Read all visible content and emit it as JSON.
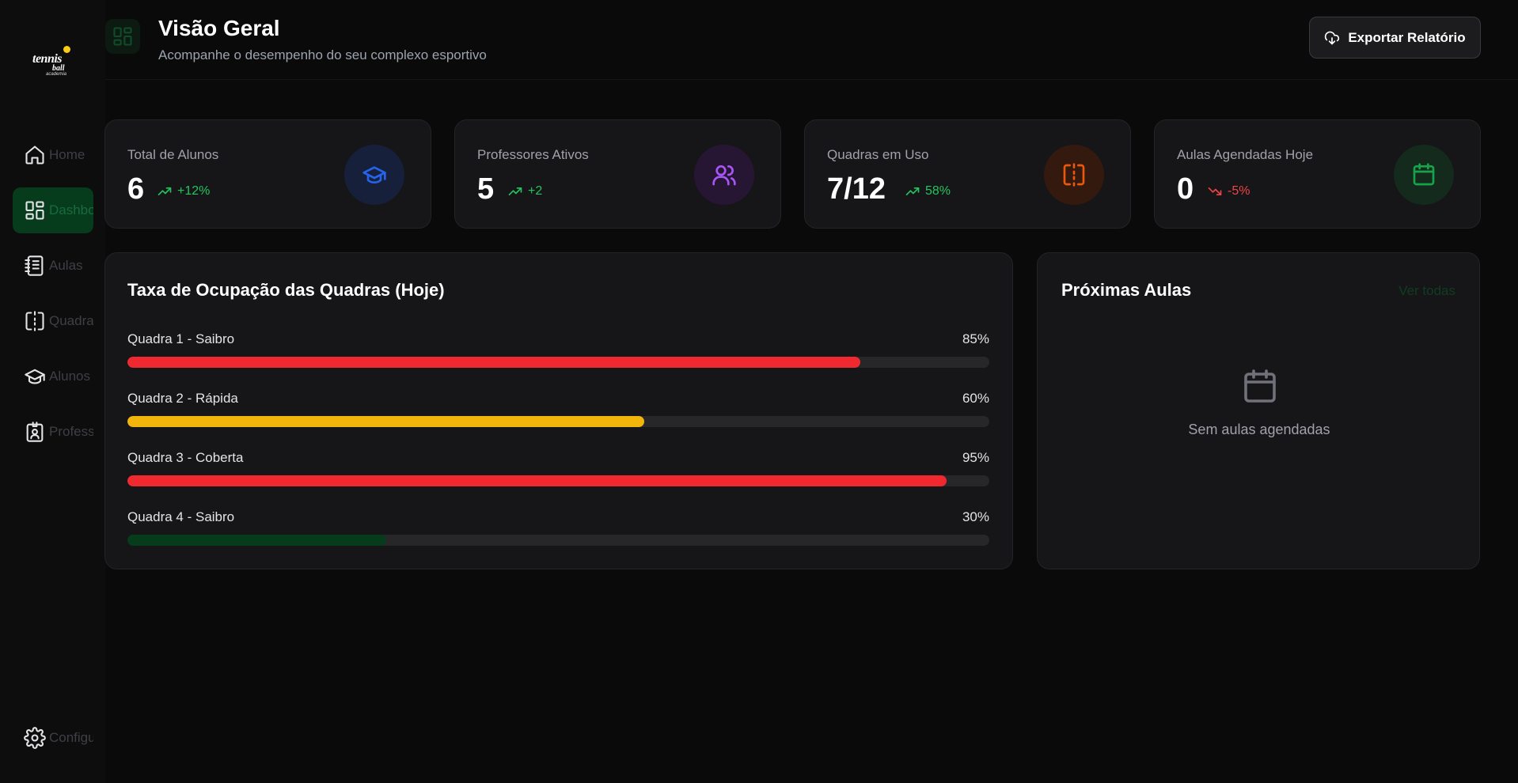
{
  "sidebar": {
    "logo": {
      "line1": "tennis",
      "line2": "ball",
      "line3": "academia"
    },
    "items": [
      {
        "label": "Home",
        "icon": "home-icon",
        "active": false
      },
      {
        "label": "Dashboard",
        "icon": "dashboard-icon",
        "active": true
      },
      {
        "label": "Aulas",
        "icon": "notebook-icon",
        "active": false
      },
      {
        "label": "Quadras",
        "icon": "court-icon",
        "active": false
      },
      {
        "label": "Alunos",
        "icon": "graduation-cap-icon",
        "active": false
      },
      {
        "label": "Professores",
        "icon": "id-badge-icon",
        "active": false
      },
      {
        "label": "Configurações",
        "icon": "gear-icon",
        "active": false
      }
    ]
  },
  "header": {
    "title": "Visão Geral",
    "subtitle": "Acompanhe o desempenho do seu complexo esportivo",
    "export_label": "Exportar Relatório"
  },
  "stats": [
    {
      "label": "Total de Alunos",
      "value": "6",
      "trend": "+12%",
      "direction": "up",
      "icon": "graduation-cap-icon",
      "color": "#1d4ed8",
      "bg": "#17203a"
    },
    {
      "label": "Professores Ativos",
      "value": "5",
      "trend": "+2",
      "direction": "up",
      "icon": "users-icon",
      "color": "#9333ea",
      "bg": "#271633"
    },
    {
      "label": "Quadras em Uso",
      "value": "7/12",
      "trend": "58%",
      "direction": "up",
      "icon": "court-icon",
      "color": "#ea580c",
      "bg": "#34190f"
    },
    {
      "label": "Aulas Agendadas Hoje",
      "value": "0",
      "trend": "-5%",
      "direction": "down",
      "icon": "calendar-icon",
      "color": "#16a34a",
      "bg": "#132a1d"
    }
  ],
  "occupancy": {
    "title": "Taxa de Ocupação das Quadras (Hoje)",
    "rows": [
      {
        "name": "Quadra 1 - Saibro",
        "pct_label": "85%",
        "value": 0.85,
        "color": "#f0282f"
      },
      {
        "name": "Quadra 2 - Rápida",
        "pct_label": "60%",
        "value": 0.6,
        "color": "#f2b50c"
      },
      {
        "name": "Quadra 3 - Coberta",
        "pct_label": "95%",
        "value": 0.95,
        "color": "#f0282f"
      },
      {
        "name": "Quadra 4 - Saibro",
        "pct_label": "30%",
        "value": 0.3,
        "color": "#063b1c"
      }
    ]
  },
  "upcoming": {
    "title": "Próximas Aulas",
    "see_all": "Ver todas",
    "empty_text": "Sem aulas agendadas",
    "empty_icon": "calendar-icon"
  }
}
